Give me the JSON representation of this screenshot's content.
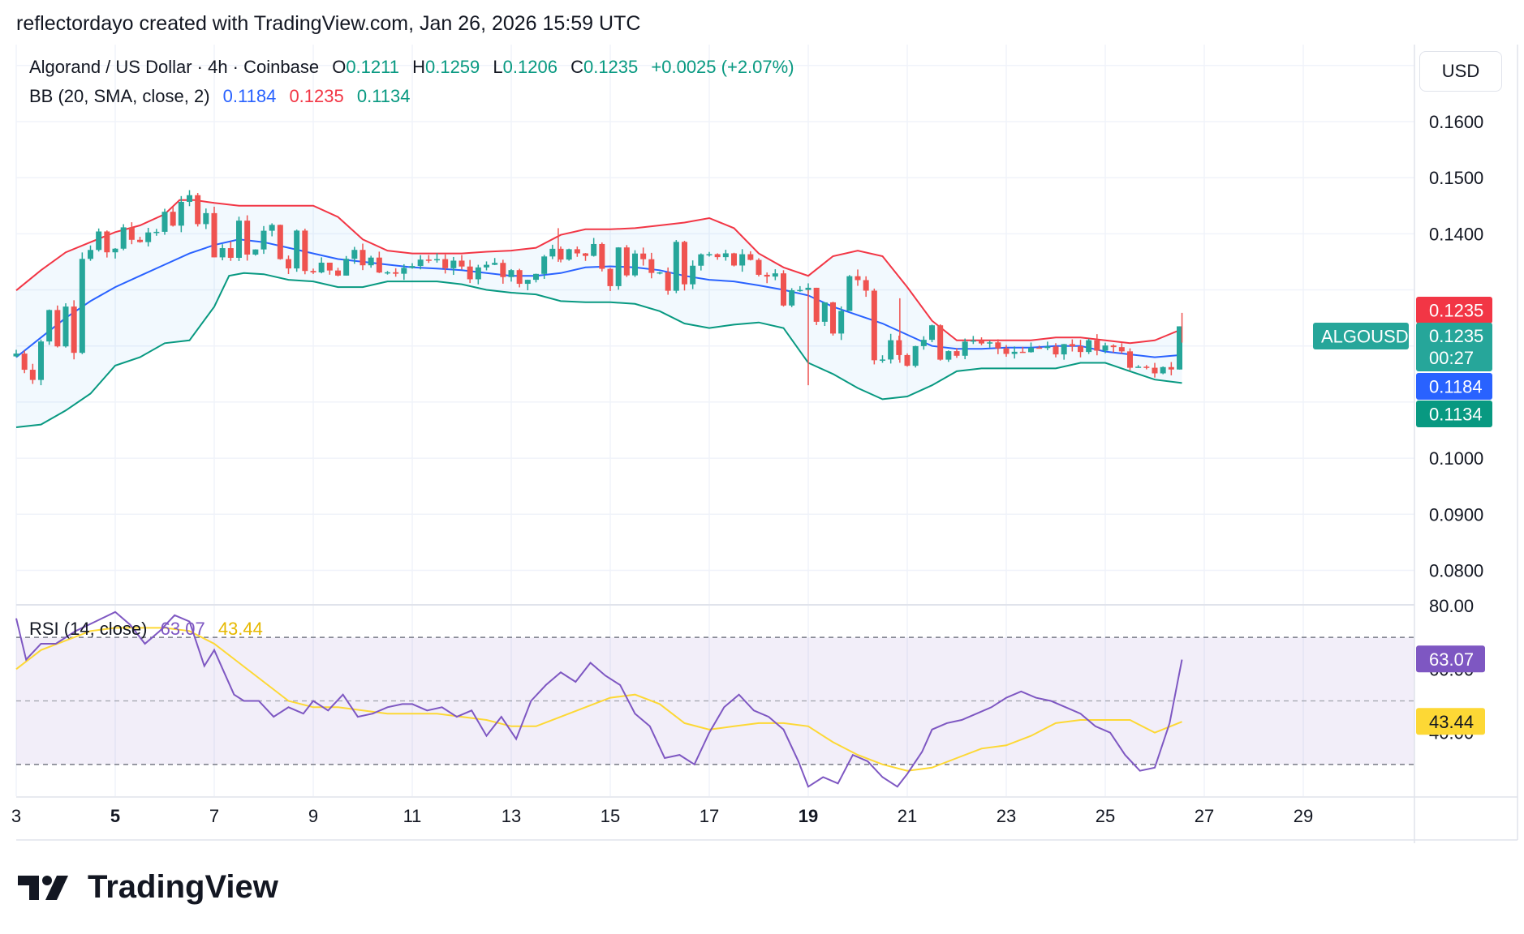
{
  "header": {
    "text": "reflectordayo created with TradingView.com, Jan 26, 2026 15:59 UTC"
  },
  "legend": {
    "symbol": "Algorand / US Dollar · 4h · Coinbase",
    "o_label": "O",
    "o": "0.1211",
    "h_label": "H",
    "h": "0.1259",
    "l_label": "L",
    "l": "0.1206",
    "c_label": "C",
    "c": "0.1235",
    "change": "+0.0025 (+2.07%)"
  },
  "bb_legend": {
    "label": "BB (20, SMA, close, 2)",
    "basis": "0.1184",
    "upper": "0.1235",
    "lower": "0.1134"
  },
  "rsi_legend": {
    "label": "RSI (14, close)",
    "rsi": "63.07",
    "ma": "43.44"
  },
  "price_axis": {
    "currency": "USD",
    "ticks": [
      "0.1600",
      "0.1500",
      "0.1400",
      "0.1000",
      "0.0900",
      "0.0800"
    ]
  },
  "price_labels": {
    "upper": "0.1235",
    "symbol": "ALGOUSD",
    "close": "0.1235",
    "countdown": "00:27",
    "basis": "0.1184",
    "lower": "0.1134"
  },
  "rsi_axis": {
    "ticks": [
      "80.00",
      "60.00",
      "40.00"
    ],
    "rsi_label": "63.07",
    "ma_label": "43.44"
  },
  "time_axis": {
    "labels": [
      "3",
      "5",
      "7",
      "9",
      "11",
      "13",
      "15",
      "17",
      "19",
      "21",
      "23",
      "25",
      "27",
      "29"
    ]
  },
  "logo": {
    "text": "TradingView"
  },
  "colors": {
    "up": "#26a69a",
    "down": "#ef5350",
    "bb_basis": "#2962ff",
    "bb_upper": "#f23645",
    "bb_lower": "#089981",
    "bb_fill": "rgba(33,150,243,0.06)",
    "rsi": "#7e57c2",
    "rsi_ma": "#fdd835",
    "rsi_band": "rgba(126,87,194,0.10)"
  },
  "chart_data": [
    {
      "type": "candlestick",
      "title": "Algorand / US Dollar · 4h · Coinbase",
      "x_range": [
        "3",
        "29"
      ],
      "ylim": [
        0.074,
        0.173
      ],
      "grid": true,
      "series": [
        {
          "name": "BB upper",
          "x": [
            3.0,
            3.5,
            4.0,
            4.5,
            5.0,
            5.5,
            6.0,
            6.3,
            6.6,
            7.0,
            7.5,
            8.0,
            8.5,
            9.0,
            9.5,
            10.0,
            10.5,
            11.0,
            11.5,
            12.0,
            12.5,
            13.0,
            13.5,
            14.0,
            14.5,
            15.0,
            15.5,
            16.0,
            16.5,
            17.0,
            17.5,
            18.0,
            18.5,
            19.0,
            19.5,
            20.0,
            20.5,
            21.0,
            21.5,
            22.0,
            22.5,
            23.0,
            23.5,
            24.0,
            24.5,
            25.0,
            25.5,
            26.0,
            26.55
          ],
          "values": [
            0.1299,
            0.1335,
            0.1367,
            0.1385,
            0.1403,
            0.1415,
            0.1435,
            0.146,
            0.146,
            0.1455,
            0.145,
            0.145,
            0.145,
            0.145,
            0.143,
            0.139,
            0.137,
            0.1365,
            0.1365,
            0.1365,
            0.1368,
            0.137,
            0.1375,
            0.1398,
            0.1408,
            0.1408,
            0.141,
            0.1415,
            0.142,
            0.1428,
            0.141,
            0.1365,
            0.134,
            0.1325,
            0.136,
            0.137,
            0.136,
            0.1305,
            0.1245,
            0.121,
            0.121,
            0.121,
            0.121,
            0.1215,
            0.1215,
            0.121,
            0.1205,
            0.121,
            0.123
          ]
        },
        {
          "name": "BB basis",
          "x": [
            3.0,
            3.5,
            4.0,
            4.5,
            5.0,
            5.5,
            6.0,
            6.5,
            7.0,
            7.5,
            8.0,
            8.5,
            9.0,
            9.5,
            10.0,
            10.5,
            11.0,
            11.5,
            12.0,
            12.5,
            13.0,
            13.5,
            14.0,
            14.5,
            15.0,
            15.5,
            16.0,
            16.5,
            17.0,
            17.5,
            18.0,
            18.5,
            19.0,
            19.5,
            20.0,
            20.5,
            21.0,
            21.5,
            22.0,
            22.5,
            23.0,
            23.5,
            24.0,
            24.5,
            25.0,
            25.5,
            26.0,
            26.55
          ],
          "values": [
            0.118,
            0.1215,
            0.125,
            0.128,
            0.1305,
            0.1325,
            0.1345,
            0.1365,
            0.138,
            0.139,
            0.1385,
            0.1375,
            0.1365,
            0.1355,
            0.135,
            0.1345,
            0.134,
            0.1338,
            0.1335,
            0.133,
            0.1325,
            0.1325,
            0.133,
            0.134,
            0.1342,
            0.134,
            0.1335,
            0.1325,
            0.1318,
            0.1315,
            0.1308,
            0.13,
            0.129,
            0.127,
            0.1255,
            0.124,
            0.122,
            0.12,
            0.1195,
            0.1195,
            0.1197,
            0.1197,
            0.12,
            0.12,
            0.119,
            0.1185,
            0.118,
            0.1184
          ]
        },
        {
          "name": "BB lower",
          "x": [
            3.0,
            3.5,
            4.0,
            4.5,
            5.0,
            5.5,
            6.0,
            6.5,
            7.0,
            7.3,
            7.6,
            8.0,
            8.5,
            9.0,
            9.5,
            10.0,
            10.5,
            11.0,
            11.5,
            12.0,
            12.5,
            13.0,
            13.5,
            14.0,
            14.5,
            15.0,
            15.5,
            16.0,
            16.5,
            17.0,
            17.5,
            18.0,
            18.5,
            19.0,
            19.5,
            20.0,
            20.5,
            21.0,
            21.5,
            22.0,
            22.5,
            23.0,
            23.5,
            24.0,
            24.5,
            25.0,
            25.5,
            26.0,
            26.55
          ],
          "values": [
            0.1055,
            0.106,
            0.1085,
            0.1115,
            0.1165,
            0.118,
            0.1205,
            0.121,
            0.127,
            0.1325,
            0.133,
            0.1328,
            0.1318,
            0.1315,
            0.1305,
            0.1305,
            0.1315,
            0.1315,
            0.1315,
            0.131,
            0.13,
            0.1295,
            0.1292,
            0.128,
            0.1278,
            0.1278,
            0.1275,
            0.1262,
            0.124,
            0.1232,
            0.1238,
            0.1242,
            0.1232,
            0.117,
            0.115,
            0.1125,
            0.1105,
            0.111,
            0.113,
            0.1155,
            0.116,
            0.116,
            0.116,
            0.116,
            0.117,
            0.117,
            0.1155,
            0.114,
            0.1134
          ]
        }
      ]
    },
    {
      "type": "line",
      "title": "RSI (14, close)",
      "ylim": [
        20,
        80
      ],
      "bands": [
        30,
        50,
        70
      ],
      "series": [
        {
          "name": "RSI",
          "x": [
            3.0,
            3.2,
            3.5,
            3.8,
            4.2,
            4.6,
            5.0,
            5.3,
            5.6,
            5.9,
            6.2,
            6.5,
            6.8,
            7.0,
            7.2,
            7.4,
            7.6,
            7.9,
            8.2,
            8.5,
            8.8,
            9.0,
            9.3,
            9.6,
            9.9,
            10.2,
            10.5,
            10.8,
            11.0,
            11.3,
            11.6,
            11.9,
            12.2,
            12.5,
            12.8,
            13.1,
            13.4,
            13.7,
            14.0,
            14.3,
            14.6,
            14.9,
            15.2,
            15.5,
            15.8,
            16.1,
            16.4,
            16.7,
            17.0,
            17.3,
            17.6,
            17.9,
            18.2,
            18.5,
            18.8,
            19.0,
            19.3,
            19.6,
            19.9,
            20.2,
            20.5,
            20.8,
            21.0,
            21.3,
            21.5,
            21.8,
            22.1,
            22.4,
            22.7,
            23.0,
            23.3,
            23.6,
            23.9,
            24.2,
            24.5,
            24.8,
            25.1,
            25.4,
            25.7,
            26.0,
            26.3,
            26.55
          ],
          "values": [
            76,
            63,
            68,
            68,
            72,
            75,
            78,
            74,
            68,
            72,
            77,
            75,
            61,
            66,
            59,
            52,
            50,
            50,
            45,
            48,
            46,
            50,
            47,
            52,
            45,
            46,
            48,
            49,
            49,
            47,
            48,
            45,
            47,
            39,
            45,
            38,
            50,
            55,
            59,
            56,
            62,
            58,
            55,
            46,
            42,
            32,
            33,
            30,
            40,
            48,
            52,
            47,
            45,
            41,
            31,
            23,
            26,
            24,
            33,
            31,
            26,
            23,
            27,
            34,
            41,
            43,
            44,
            46,
            48,
            51,
            53,
            51,
            50,
            48,
            46,
            42,
            40,
            33,
            28,
            29,
            43,
            63
          ]
        },
        {
          "name": "RSI MA",
          "x": [
            3.0,
            3.5,
            4.0,
            4.5,
            5.0,
            5.5,
            6.0,
            6.5,
            7.0,
            7.5,
            8.0,
            8.5,
            9.0,
            9.5,
            10.0,
            10.5,
            11.0,
            11.5,
            12.0,
            12.5,
            13.0,
            13.5,
            14.0,
            14.5,
            15.0,
            15.5,
            16.0,
            16.5,
            17.0,
            17.5,
            18.0,
            18.5,
            19.0,
            19.5,
            20.0,
            20.5,
            21.0,
            21.5,
            22.0,
            22.5,
            23.0,
            23.5,
            24.0,
            24.5,
            25.0,
            25.5,
            26.0,
            26.55
          ],
          "values": [
            60,
            66,
            69,
            72,
            73,
            73,
            73,
            72,
            68,
            62,
            56,
            50,
            48,
            48,
            47,
            46,
            46,
            46,
            45,
            44,
            42,
            42,
            45,
            48,
            51,
            52,
            49,
            43,
            41,
            42,
            43,
            43,
            42,
            37,
            33,
            30,
            28,
            29,
            32,
            35,
            36,
            39,
            43,
            44,
            44,
            44,
            40,
            43.44
          ]
        }
      ]
    }
  ]
}
